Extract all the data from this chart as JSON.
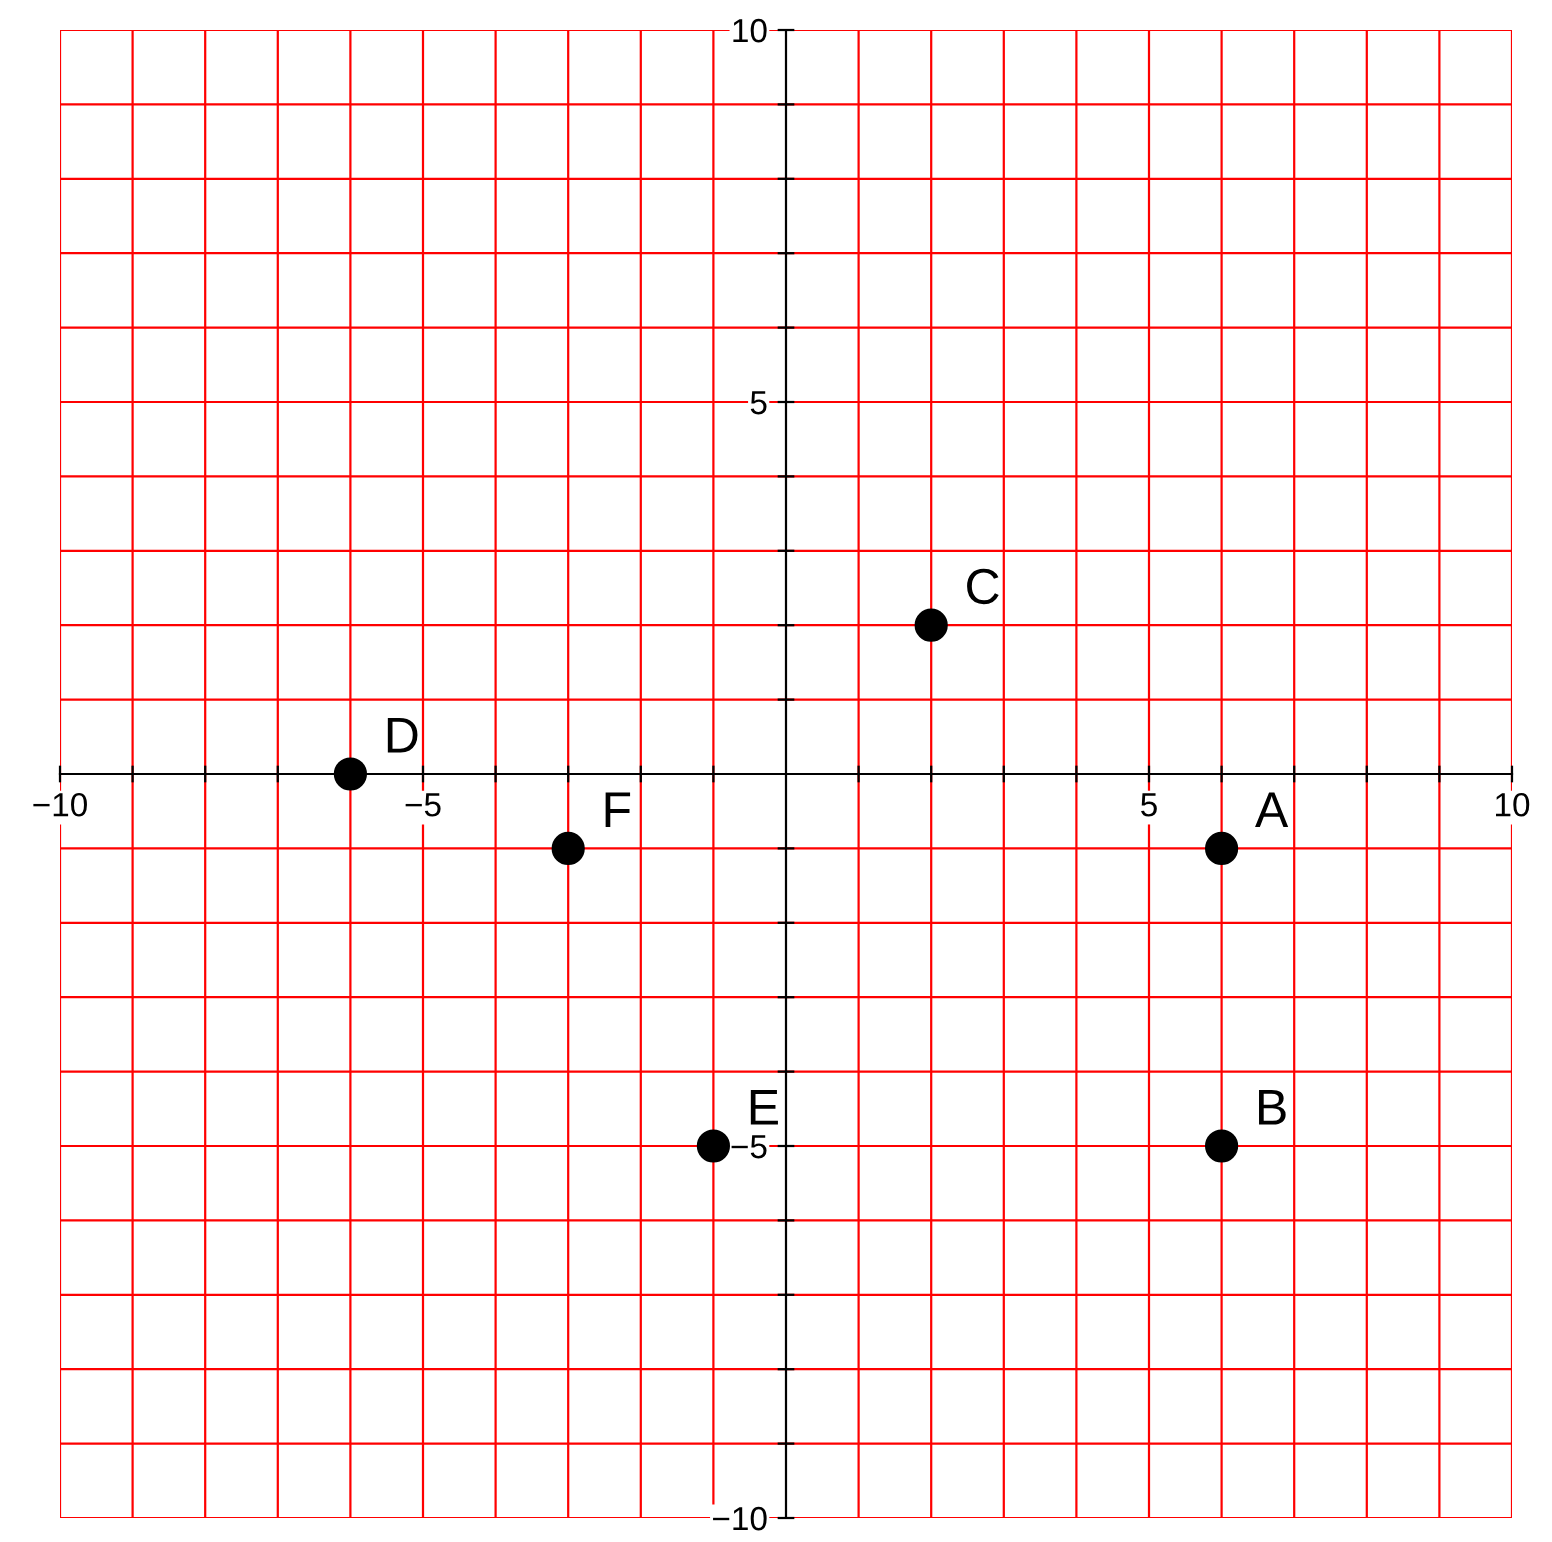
{
  "chart_data": {
    "type": "scatter",
    "x": [
      6,
      6,
      2,
      -6,
      -1,
      -3
    ],
    "values": [
      -1,
      -5,
      2,
      0,
      -5,
      -1
    ],
    "color": "#000000",
    "marker": "circle",
    "annotations": [
      {
        "text": "A",
        "x": 6,
        "y": -1
      },
      {
        "text": "B",
        "x": 6,
        "y": -5
      },
      {
        "text": "C",
        "x": 2,
        "y": 2
      },
      {
        "text": "D",
        "x": -6,
        "y": 0
      },
      {
        "text": "E",
        "x": -1,
        "y": -5
      },
      {
        "text": "F",
        "x": -3,
        "y": -1
      }
    ],
    "xlim": [
      -10,
      10
    ],
    "ylim": [
      -10,
      10
    ],
    "xticks": [
      {
        "value": -10,
        "label": "−10"
      },
      {
        "value": -9,
        "label": null
      },
      {
        "value": -8,
        "label": null
      },
      {
        "value": -7,
        "label": null
      },
      {
        "value": -6,
        "label": null
      },
      {
        "value": -5,
        "label": "−5"
      },
      {
        "value": -4,
        "label": null
      },
      {
        "value": -3,
        "label": null
      },
      {
        "value": -2,
        "label": null
      },
      {
        "value": -1,
        "label": null
      },
      {
        "value": 1,
        "label": null
      },
      {
        "value": 2,
        "label": null
      },
      {
        "value": 3,
        "label": null
      },
      {
        "value": 4,
        "label": null
      },
      5,
      {
        "value": 6,
        "label": null
      },
      {
        "value": 7,
        "label": null
      },
      {
        "value": 8,
        "label": null
      },
      {
        "value": 9,
        "label": null
      },
      10
    ],
    "yticks": [
      {
        "value": -10,
        "label": "−10"
      },
      {
        "value": -9,
        "label": null
      },
      {
        "value": -8,
        "label": null
      },
      {
        "value": -7,
        "label": null
      },
      {
        "value": -6,
        "label": null
      },
      {
        "value": -5,
        "label": "−5"
      },
      {
        "value": -4,
        "label": null
      },
      {
        "value": -3,
        "label": null
      },
      {
        "value": -2,
        "label": null
      },
      {
        "value": -1,
        "label": null
      },
      {
        "value": 1,
        "label": null
      },
      {
        "value": 2,
        "label": null
      },
      {
        "value": 3,
        "label": null
      },
      {
        "value": 4,
        "label": null
      },
      5,
      {
        "value": 6,
        "label": null
      },
      {
        "value": 7,
        "label": null
      },
      {
        "value": 8,
        "label": null
      },
      {
        "value": 9,
        "label": null
      },
      10
    ],
    "grid": true
  }
}
